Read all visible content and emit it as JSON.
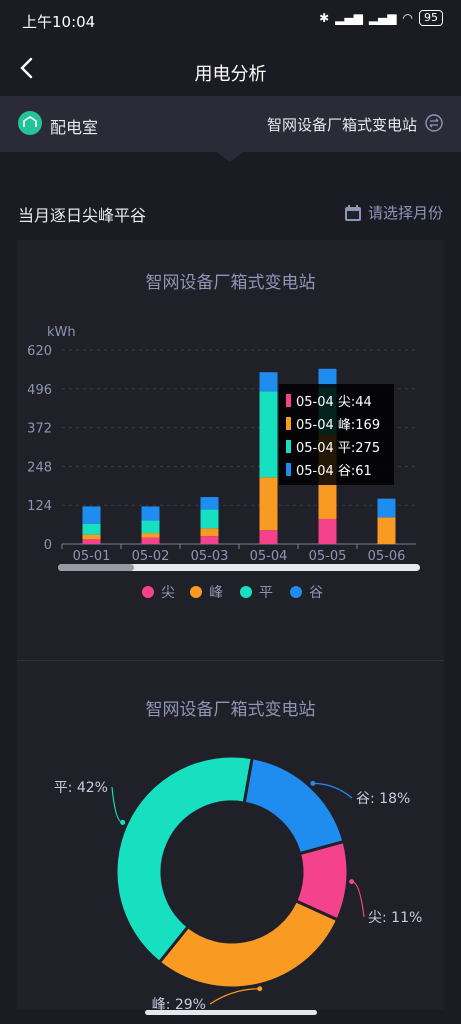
{
  "status": {
    "time": "上午10:04",
    "battery": "95"
  },
  "header": {
    "title": "用电分析"
  },
  "room": {
    "label": "配电室",
    "station": "智网设备厂箱式变电站"
  },
  "section": {
    "title": "当月逐日尖峰平谷",
    "month_picker": "请选择月份"
  },
  "colors": {
    "jian": "#f5428c",
    "feng": "#f99a23",
    "ping": "#16e0c0",
    "gu": "#1f8cf0"
  },
  "chart_data": [
    {
      "type": "bar",
      "title": "智网设备厂箱式变电站",
      "ylabel": "kWh",
      "ylim": [
        0,
        620
      ],
      "yticks": [
        "0",
        "124",
        "248",
        "372",
        "496",
        "620"
      ],
      "categories": [
        "05-01",
        "05-02",
        "05-03",
        "05-04",
        "05-05",
        "05-06"
      ],
      "stacked": true,
      "series": [
        {
          "name": "尖",
          "values": [
            15,
            20,
            25,
            44,
            80,
            0
          ]
        },
        {
          "name": "峰",
          "values": [
            15,
            15,
            25,
            169,
            270,
            85
          ]
        },
        {
          "name": "平",
          "values": [
            35,
            40,
            60,
            275,
            150,
            0
          ]
        },
        {
          "name": "谷",
          "values": [
            55,
            45,
            40,
            61,
            60,
            60
          ]
        }
      ],
      "tooltip": [
        "05-04 尖:44",
        "05-04 峰:169",
        "05-04 平:275",
        "05-04 谷:61"
      ],
      "legend": "bottom"
    },
    {
      "type": "pie",
      "title": "智网设备厂箱式变电站",
      "slices": [
        {
          "name": "谷",
          "value": 18,
          "label": "谷: 18%"
        },
        {
          "name": "尖",
          "value": 11,
          "label": "尖: 11%"
        },
        {
          "name": "峰",
          "value": 29,
          "label": "峰: 29%"
        },
        {
          "name": "平",
          "value": 42,
          "label": "平: 42%"
        }
      ]
    }
  ]
}
